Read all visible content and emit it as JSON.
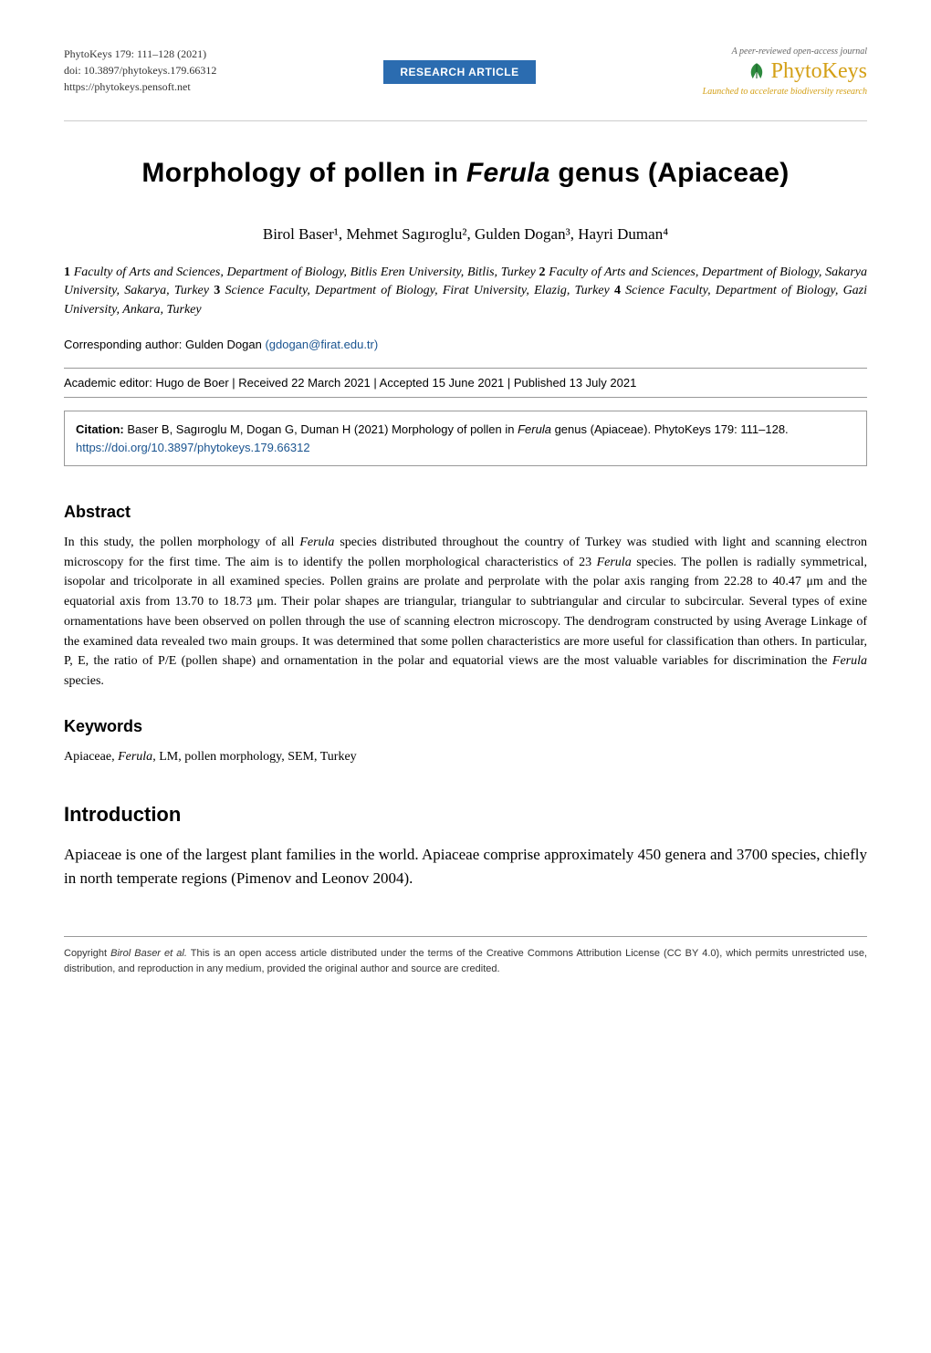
{
  "header": {
    "journal_line": "PhytoKeys 179: 111–128 (2021)",
    "doi_line": "doi: 10.3897/phytokeys.179.66312",
    "url_line": "https://phytokeys.pensoft.net",
    "badge": "RESEARCH ARTICLE",
    "logo_top": "A peer-reviewed open-access journal",
    "logo_text": "PhytoKeys",
    "logo_bottom": "Launched to accelerate biodiversity research",
    "logo_leaf_color": "#2d8a3e",
    "badge_bg": "#2b6cb0",
    "logo_color": "#d4a017"
  },
  "title": {
    "pre": "Morphology of pollen in ",
    "genus": "Ferula",
    "post": " genus (Apiaceae)"
  },
  "authors_html": "Birol Baser¹, Mehmet Sagıroglu², Gulden Dogan³, Hayri Duman⁴",
  "affiliations": [
    {
      "num": "1",
      "text": "Faculty of Arts and Sciences, Department of Biology, Bitlis Eren University, Bitlis, Turkey "
    },
    {
      "num": "2",
      "text": "Faculty of Arts and Sciences, Department of Biology, Sakarya University, Sakarya, Turkey "
    },
    {
      "num": "3",
      "text": "Science Faculty, Department of Biology, Firat University, Elazig, Turkey "
    },
    {
      "num": "4",
      "text": "Science Faculty, Department of Biology, Gazi University, Ankara, Turkey"
    }
  ],
  "corresponding": {
    "label": "Corresponding author: ",
    "name": "Gulden Dogan ",
    "email": "(gdogan@firat.edu.tr)",
    "email_color": "#1a5490"
  },
  "editor_line": "Academic editor: Hugo de Boer  |  Received 22 March 2021  |  Accepted 15 June 2021  |  Published 13 July 2021",
  "citation": {
    "label": "Citation: ",
    "text_pre": "Baser B, Sagıroglu M, Dogan G, Duman H (2021) Morphology of pollen in ",
    "genus": "Ferula",
    "text_post": " genus (Apiaceae). PhytoKeys 179: 111–128. ",
    "link": "https://doi.org/10.3897/phytokeys.179.66312"
  },
  "abstract": {
    "heading": "Abstract",
    "body_parts": [
      "In this study, the pollen morphology of all ",
      {
        "italic": "Ferula"
      },
      " species distributed throughout the country of Turkey was studied with light and scanning electron microscopy for the first time. The aim is to identify the pollen morphological characteristics of 23 ",
      {
        "italic": "Ferula"
      },
      " species. The pollen is radially symmetrical, isopolar and tricolporate in all examined species. Pollen grains are prolate and perprolate with the polar axis ranging from 22.28 to 40.47 μm and the equatorial axis from 13.70 to 18.73 μm. Their polar shapes are triangular, triangular to subtriangular and circular to subcircular. Several types of exine ornamentations have been observed on pollen through the use of scanning electron microscopy. The dendrogram constructed by using Average Linkage of the examined data revealed two main groups. It was determined that some pollen characteristics are more useful for classification than others. In particular, P, E, the ratio of P/E (pollen shape) and ornamentation in the polar and equatorial views are the most valuable variables for discrimination the ",
      {
        "italic": "Ferula"
      },
      " species."
    ]
  },
  "keywords": {
    "heading": "Keywords",
    "body_parts": [
      "Apiaceae, ",
      {
        "italic": "Ferula"
      },
      ", LM, pollen morphology, SEM, Turkey"
    ]
  },
  "introduction": {
    "heading": "Introduction",
    "body": "Apiaceae is one of the largest plant families in the world. Apiaceae comprise approximately 450 genera and 3700 species, chiefly in north temperate regions (Pimenov and Leonov 2004)."
  },
  "footer": {
    "pre": "Copyright ",
    "name": "Birol Baser et al.",
    "post": " This is an open access article distributed under the terms of the Creative Commons Attribution License (CC BY 4.0), which permits unrestricted use, distribution, and reproduction in any medium, provided the original author and source are credited."
  }
}
